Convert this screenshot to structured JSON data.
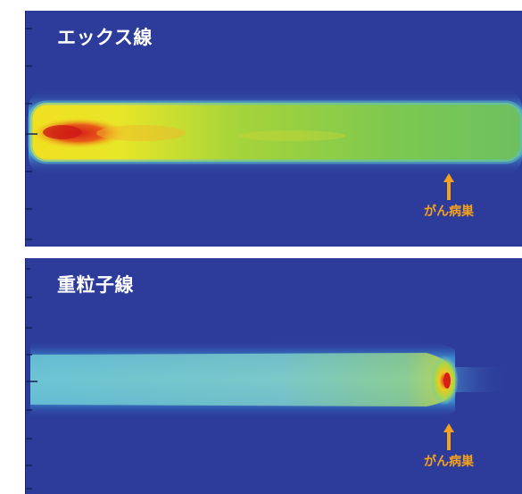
{
  "panels": {
    "xray": {
      "title": "エックス線",
      "target_label": "がん病巣"
    },
    "heavy_ion": {
      "title": "重粒子線",
      "target_label": "がん病巣"
    }
  },
  "colors": {
    "background": "#2d3c9a",
    "label": "#ffffff",
    "marker": "#f7a21b"
  },
  "icons": {
    "marker": "up-arrow-icon"
  }
}
